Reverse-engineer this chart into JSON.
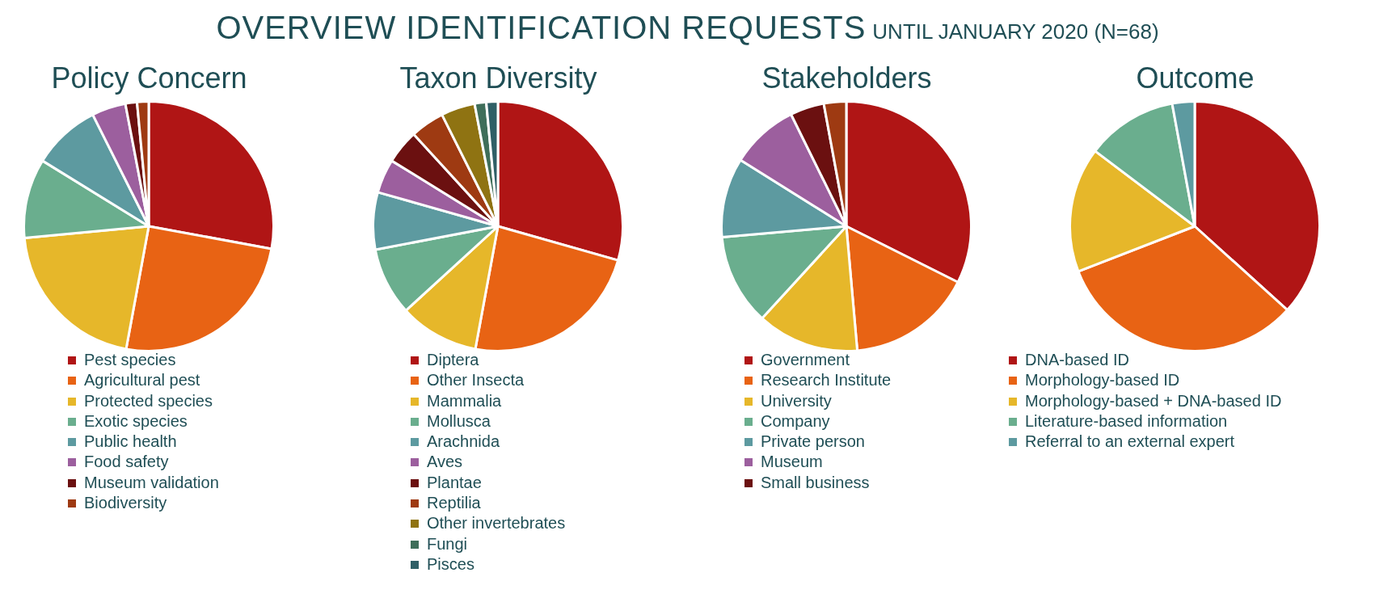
{
  "chart_data": [
    {
      "type": "pie",
      "title": "Policy Concern",
      "annotations": [
        "OVERVIEW IDENTIFICATION REQUESTS",
        "UNTIL JANUARY 2020 (N=68)"
      ],
      "legend": "bottom",
      "categories": [
        "Pest species",
        "Agricultural pest",
        "Protected species",
        "Exotic species",
        "Public health",
        "Food safety",
        "Museum validation",
        "Biodiversity"
      ],
      "values": [
        27.9,
        25,
        20.6,
        10.3,
        8.8,
        4.4,
        1.5,
        1.5
      ],
      "colors": [
        "#b01515",
        "#e86314",
        "#e6b72a",
        "#6aae8e",
        "#5d9aa0",
        "#9c5f9e",
        "#6b1010",
        "#9e3a12"
      ]
    },
    {
      "type": "pie",
      "title": "Taxon Diversity",
      "legend": "bottom",
      "categories": [
        "Diptera",
        "Other Insecta",
        "Mammalia",
        "Mollusca",
        "Arachnida",
        "Aves",
        "Plantae",
        "Reptilia",
        "Other invertebrates",
        "Fungi",
        "Pisces"
      ],
      "values": [
        29.4,
        23.5,
        10.3,
        8.8,
        7.4,
        4.4,
        4.4,
        4.4,
        4.4,
        1.5,
        1.5
      ],
      "colors": [
        "#b01515",
        "#e86314",
        "#e6b72a",
        "#6aae8e",
        "#5d9aa0",
        "#9c5f9e",
        "#6b1010",
        "#9e3a12",
        "#8f7312",
        "#3f6e5a",
        "#2f5f66"
      ]
    },
    {
      "type": "pie",
      "title": "Stakeholders",
      "legend": "bottom",
      "categories": [
        "Government",
        "Research Institute",
        "University",
        "Company",
        "Private person",
        "Museum",
        "Small business",
        null
      ],
      "values": [
        32.4,
        16.2,
        13.2,
        11.8,
        10.3,
        8.8,
        4.4,
        2.9
      ],
      "colors": [
        "#b01515",
        "#e86314",
        "#e6b72a",
        "#6aae8e",
        "#5d9aa0",
        "#9c5f9e",
        "#6b1010",
        "#9e3a12"
      ]
    },
    {
      "type": "pie",
      "title": "Outcome",
      "legend": "bottom",
      "categories": [
        "DNA-based ID",
        "Morphology-based ID",
        "Morphology-based + DNA-based ID",
        "Literature-based information",
        "Referral to an external expert"
      ],
      "values": [
        36.7,
        32.4,
        16.2,
        11.8,
        2.9
      ],
      "colors": [
        "#b01515",
        "#e86314",
        "#e6b72a",
        "#6aae8e",
        "#5d9aa0"
      ]
    }
  ]
}
